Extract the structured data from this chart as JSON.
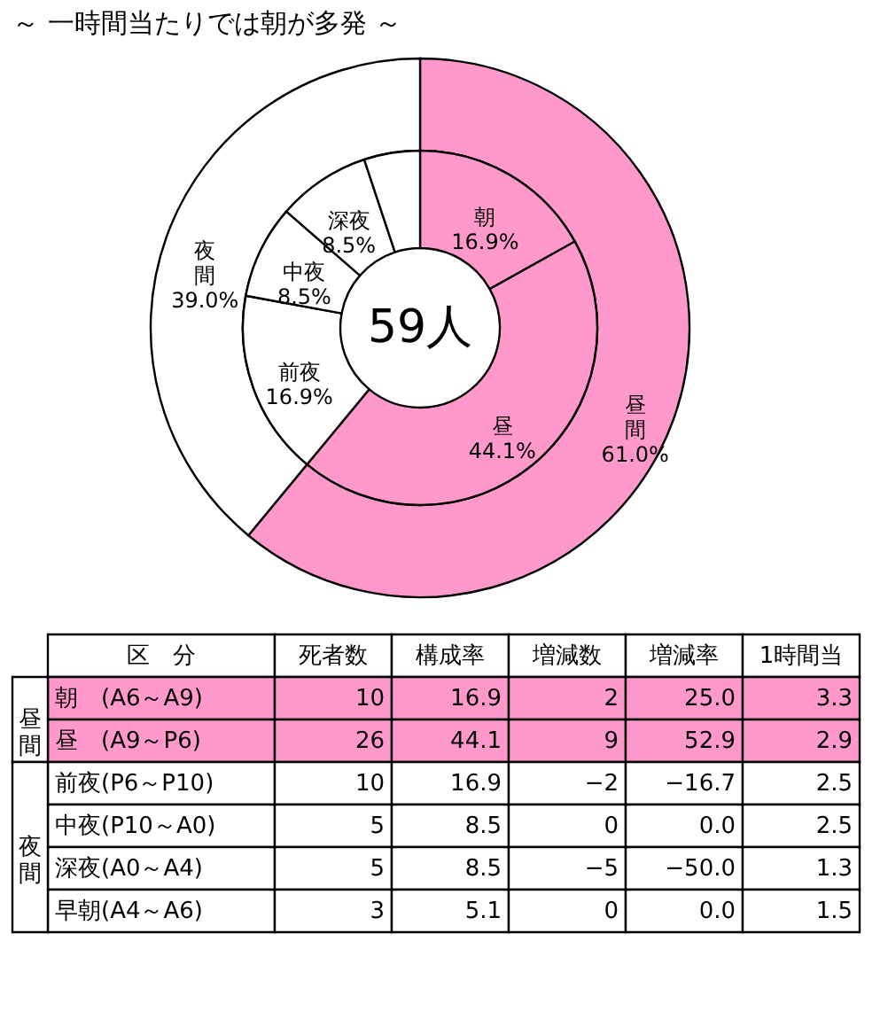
{
  "chart_data": [
    {
      "type": "donut",
      "title": "～ 一時間当たりでは朝が多発 ～",
      "annotations": [
        "59人"
      ],
      "categories": [
        "昼間",
        "夜間"
      ],
      "values": [
        61.0,
        39.0
      ],
      "colors": [
        "#ff99cc",
        "#ffffff"
      ],
      "data_labels": true,
      "value_labels": [
        "61.0%",
        "39.0%"
      ]
    },
    {
      "type": "donut",
      "categories": [
        "朝",
        "昼",
        "前夜",
        "中夜",
        "深夜",
        null
      ],
      "values": [
        16.9,
        44.1,
        16.9,
        8.5,
        8.5,
        5.1
      ],
      "colors": [
        "#ff99cc",
        "#ff99cc",
        "#ffffff",
        "#ffffff",
        "#ffffff",
        "#ffffff"
      ],
      "data_labels": true,
      "value_labels": [
        "16.9%",
        "44.1%",
        "16.9%",
        "8.5%",
        "8.5%",
        null
      ]
    },
    {
      "type": "other",
      "xlabel": "区　分",
      "annotations": [
        "昼間",
        "夜間"
      ],
      "data_labels": true,
      "categories": [
        "朝　(A6～A9)",
        "昼　(A9～P6)",
        "前夜(P6～P10)",
        "中夜(P10～A0)",
        "深夜(A0～A4)",
        "早朝(A4～A6)"
      ],
      "series": [
        {
          "name": "死者数",
          "values": [
            10,
            26,
            10,
            5,
            5,
            3
          ],
          "colors": [
            "#ff99cc",
            "#ff99cc",
            "#ffffff",
            "#ffffff",
            "#ffffff",
            "#ffffff"
          ]
        },
        {
          "name": "構成率",
          "values": [
            16.9,
            44.1,
            16.9,
            8.5,
            8.5,
            5.1
          ],
          "colors": [
            "#ff99cc",
            "#ff99cc",
            "#ffffff",
            "#ffffff",
            "#ffffff",
            "#ffffff"
          ]
        },
        {
          "name": "増減数",
          "values": [
            2,
            9,
            -2,
            0,
            -5,
            0
          ],
          "colors": [
            "#ff99cc",
            "#ff99cc",
            "#ffffff",
            "#ffffff",
            "#ffffff",
            "#ffffff"
          ]
        },
        {
          "name": "増減率",
          "values": [
            25.0,
            52.9,
            -16.7,
            0.0,
            -50.0,
            0.0
          ],
          "value_labels": [
            "25.0",
            "52.9",
            "−16.7",
            "0.0",
            "−50.0",
            "0.0"
          ],
          "colors": [
            "#ff99cc",
            "#ff99cc",
            "#ffffff",
            "#ffffff",
            "#ffffff",
            "#ffffff"
          ]
        },
        {
          "name": "1時間当",
          "values": [
            3.3,
            2.9,
            2.5,
            2.5,
            1.3,
            1.5
          ],
          "colors": [
            "#ff99cc",
            "#ff99cc",
            "#ffffff",
            "#ffffff",
            "#ffffff",
            "#ffffff"
          ]
        }
      ]
    }
  ]
}
